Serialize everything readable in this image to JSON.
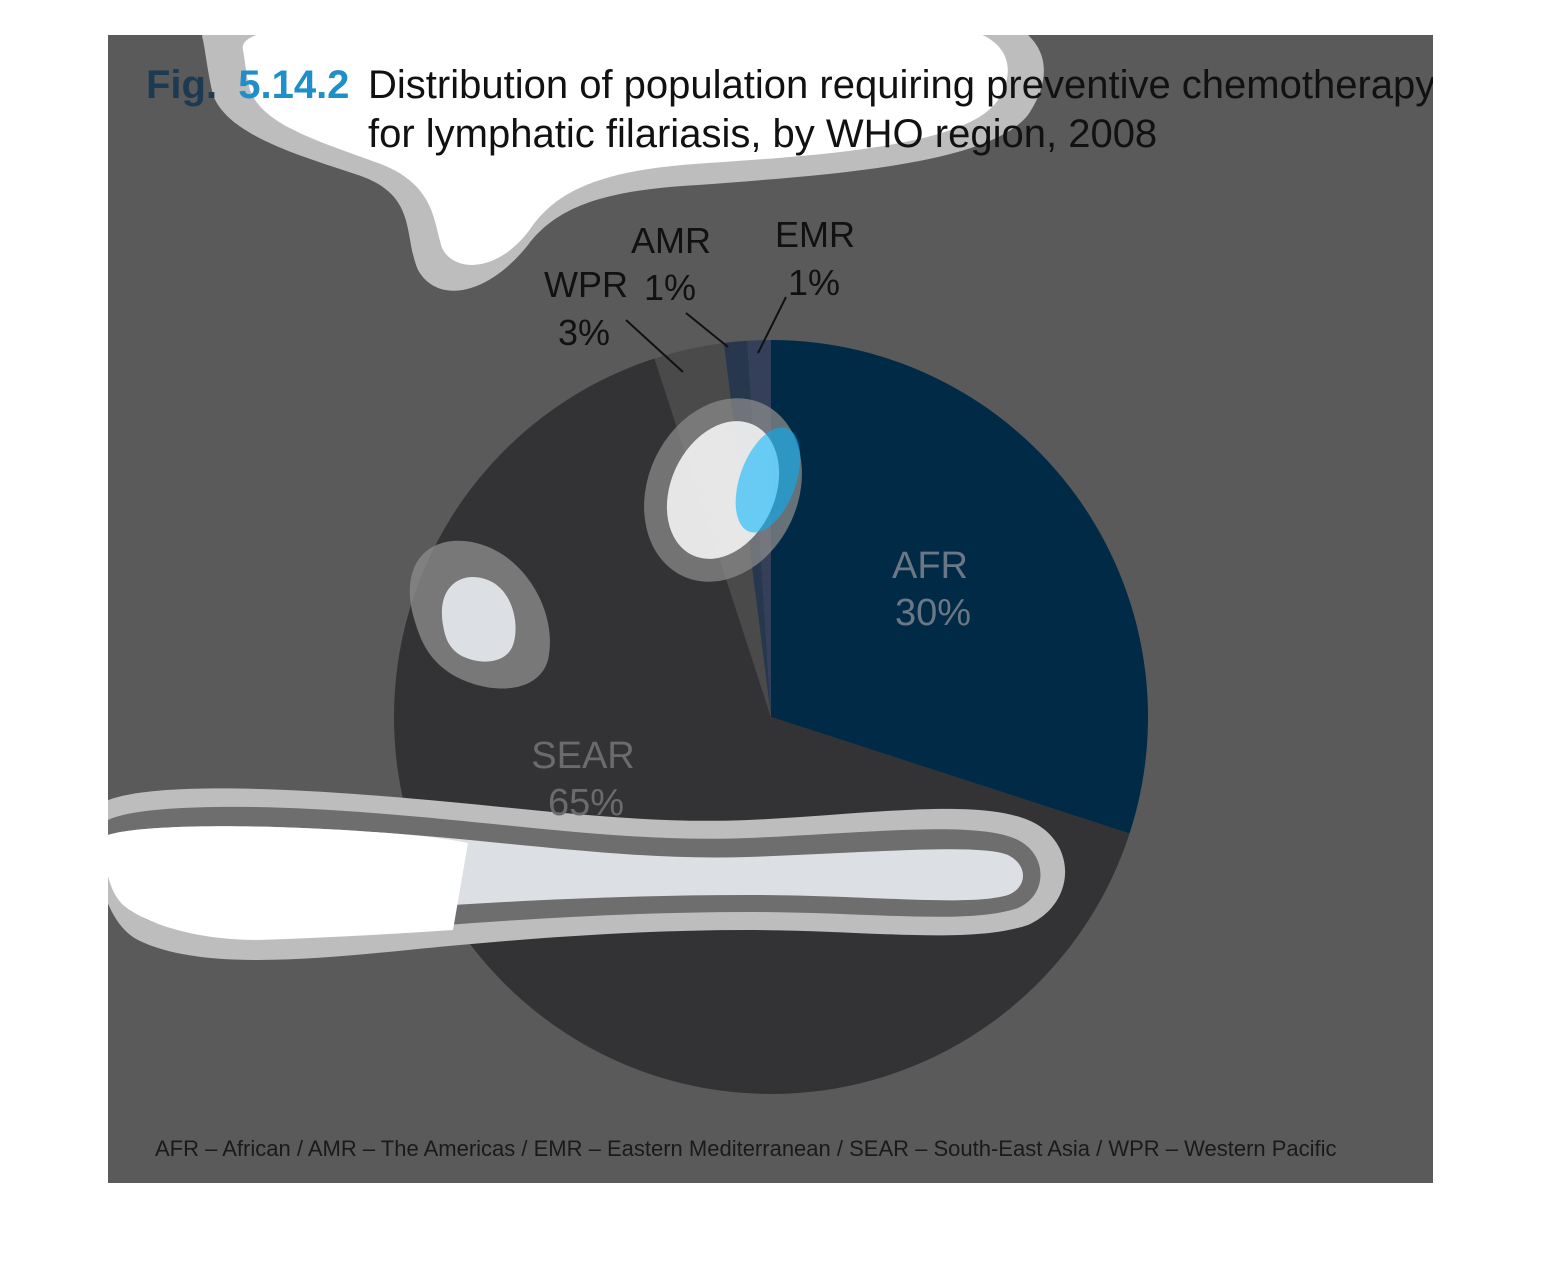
{
  "figure": {
    "number_prefix": "Fig.",
    "number": "5.14.2",
    "title_line1": "Distribution of population requiring preventive chemotherapy",
    "title_line2": "for lymphatic filariasis, by WHO region, 2008"
  },
  "footnote": "AFR – African / AMR – The Americas / EMR – Eastern Mediterranean / SEAR – South-East Asia / WPR – Western Pacific",
  "colors": {
    "panel_background": "#5a5a5a",
    "fig_prefix": "#1c3a52",
    "fig_number": "#1f8fc9",
    "afr": "#002a45",
    "sear": "#333335",
    "wpr": "#4a4a4a",
    "amr": "#26374e",
    "emr": "#34405a",
    "blob_fill": "#dcdfe4",
    "blob_ring": "#6e6e6e",
    "blob_outer": "#bdbdbd"
  },
  "chart_data": {
    "type": "pie",
    "title": "Distribution of population requiring preventive chemotherapy for lymphatic filariasis, by WHO region, 2008",
    "start": "12 o'clock",
    "direction": "clockwise",
    "slices": [
      {
        "key": "afr",
        "label": "AFR",
        "value": 30,
        "value_label": "30%",
        "label_position": "inside",
        "color": "#002a45"
      },
      {
        "key": "sear",
        "label": "SEAR",
        "value": 65,
        "value_label": "65%",
        "label_position": "inside",
        "color": "#333335"
      },
      {
        "key": "wpr",
        "label": "WPR",
        "value": 3,
        "value_label": "3%",
        "label_position": "callout",
        "color": "#4a4a4a"
      },
      {
        "key": "amr",
        "label": "AMR",
        "value": 1,
        "value_label": "1%",
        "label_position": "callout",
        "color": "#26374e"
      },
      {
        "key": "emr",
        "label": "EMR",
        "value": 1,
        "value_label": "1%",
        "label_position": "callout",
        "color": "#34405a"
      }
    ]
  }
}
